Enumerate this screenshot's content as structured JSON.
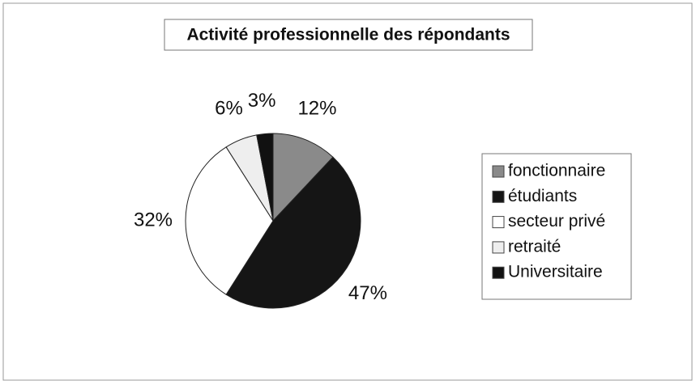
{
  "chart_data": {
    "type": "pie",
    "title": "Activité professionnelle des répondants",
    "categories": [
      "fonctionnaire",
      "étudiants",
      "secteur privé",
      "retraité",
      "Universitaire"
    ],
    "values": [
      12,
      47,
      32,
      6,
      3
    ],
    "value_labels": [
      "12%",
      "47%",
      "32%",
      "6%",
      "3%"
    ],
    "colors": [
      "#8a8a8a",
      "#151515",
      "#ffffff",
      "#eeeeee",
      "#111111"
    ],
    "legend": "right"
  }
}
